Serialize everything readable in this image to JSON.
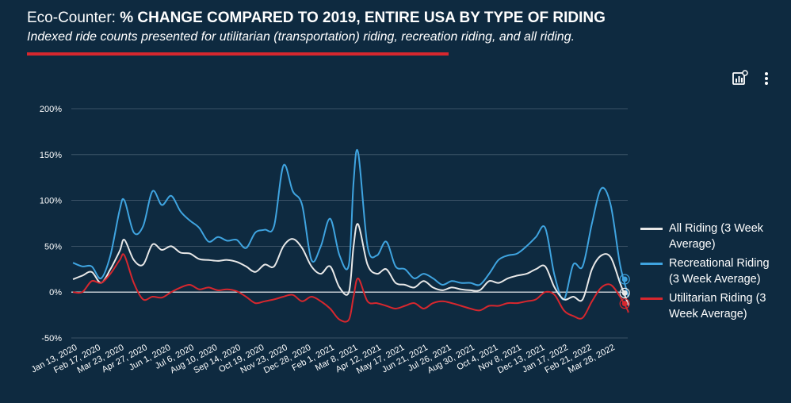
{
  "header": {
    "title_prefix": "Eco-Counter: ",
    "title_bold": "% CHANGE COMPARED TO 2019, ENTIRE USA BY TYPE OF RIDING",
    "subtitle": "Indexed ride counts presented for utilitarian (transportation) riding, recreation riding, and all riding."
  },
  "toolbar": {
    "insights_icon": "chart-insights-icon",
    "menu_icon": "more-vertical-icon"
  },
  "colors": {
    "background": "#0e2a40",
    "all": "#e8e8e8",
    "recreational": "#3fa4e0",
    "utilitarian": "#d7272e",
    "accent": "#d7272e"
  },
  "chart_data": {
    "type": "line",
    "title": "% CHANGE COMPARED TO 2019, ENTIRE USA BY TYPE OF RIDING",
    "ylim": [
      -50,
      200
    ],
    "yticks": [
      -50,
      0,
      50,
      100,
      150,
      200
    ],
    "ytick_labels": [
      "-50%",
      "0%",
      "50%",
      "100%",
      "150%",
      "200%"
    ],
    "x_tick_labels": [
      "Jan 13, 2020",
      "Feb 17, 2020",
      "Mar 23, 2020",
      "Apr 27, 2020",
      "Jun 1, 2020",
      "Jul 6, 2020",
      "Aug 10, 2020",
      "Sep 14, 2020",
      "Oct 19, 2020",
      "Nov 23, 2020",
      "Dec 28, 2020",
      "Feb 1, 2021",
      "Mar 8, 2021",
      "Apr 12, 2021",
      "May 17, 2021",
      "Jun 21, 2021",
      "Jul 26, 2021",
      "Aug 30, 2021",
      "Oct 4, 2021",
      "Nov 8, 2021",
      "Dec 13, 2021",
      "Jan 17, 2022",
      "Feb 21, 2022",
      "Mar 28, 2022"
    ],
    "x_start": "2020-01-13",
    "x_end": "2022-04-25",
    "grid": true,
    "legend_position": "right",
    "series": [
      {
        "name": "All Riding (3 Week Average)",
        "color": "#e8e8e8",
        "points": [
          [
            "2020-01-06",
            14
          ],
          [
            "2020-01-20",
            18
          ],
          [
            "2020-02-03",
            22
          ],
          [
            "2020-02-17",
            10
          ],
          [
            "2020-03-02",
            25
          ],
          [
            "2020-03-16",
            45
          ],
          [
            "2020-03-23",
            57
          ],
          [
            "2020-04-06",
            35
          ],
          [
            "2020-04-20",
            30
          ],
          [
            "2020-05-04",
            52
          ],
          [
            "2020-05-18",
            46
          ],
          [
            "2020-06-01",
            50
          ],
          [
            "2020-06-15",
            43
          ],
          [
            "2020-06-29",
            42
          ],
          [
            "2020-07-13",
            36
          ],
          [
            "2020-07-27",
            35
          ],
          [
            "2020-08-10",
            34
          ],
          [
            "2020-08-24",
            35
          ],
          [
            "2020-09-07",
            33
          ],
          [
            "2020-09-21",
            28
          ],
          [
            "2020-10-05",
            22
          ],
          [
            "2020-10-19",
            30
          ],
          [
            "2020-11-02",
            28
          ],
          [
            "2020-11-16",
            50
          ],
          [
            "2020-11-30",
            58
          ],
          [
            "2020-12-14",
            48
          ],
          [
            "2020-12-28",
            28
          ],
          [
            "2021-01-11",
            20
          ],
          [
            "2021-01-25",
            28
          ],
          [
            "2021-02-08",
            5
          ],
          [
            "2021-02-22",
            0
          ],
          [
            "2021-03-01",
            50
          ],
          [
            "2021-03-08",
            74
          ],
          [
            "2021-03-22",
            30
          ],
          [
            "2021-04-05",
            20
          ],
          [
            "2021-04-19",
            25
          ],
          [
            "2021-05-03",
            10
          ],
          [
            "2021-05-17",
            8
          ],
          [
            "2021-05-31",
            5
          ],
          [
            "2021-06-14",
            12
          ],
          [
            "2021-06-28",
            5
          ],
          [
            "2021-07-12",
            2
          ],
          [
            "2021-07-26",
            5
          ],
          [
            "2021-08-09",
            3
          ],
          [
            "2021-08-23",
            2
          ],
          [
            "2021-09-06",
            2
          ],
          [
            "2021-09-20",
            12
          ],
          [
            "2021-10-04",
            10
          ],
          [
            "2021-10-18",
            15
          ],
          [
            "2021-11-01",
            18
          ],
          [
            "2021-11-15",
            20
          ],
          [
            "2021-11-29",
            25
          ],
          [
            "2021-12-13",
            28
          ],
          [
            "2021-12-27",
            5
          ],
          [
            "2022-01-10",
            -8
          ],
          [
            "2022-01-24",
            -5
          ],
          [
            "2022-02-07",
            -8
          ],
          [
            "2022-02-21",
            25
          ],
          [
            "2022-03-07",
            40
          ],
          [
            "2022-03-21",
            38
          ],
          [
            "2022-04-04",
            10
          ],
          [
            "2022-04-18",
            -12
          ],
          [
            "2022-04-25",
            -13
          ]
        ]
      },
      {
        "name": "Recreational Riding (3 Week Average)",
        "color": "#3fa4e0",
        "points": [
          [
            "2020-01-06",
            32
          ],
          [
            "2020-01-20",
            28
          ],
          [
            "2020-02-03",
            28
          ],
          [
            "2020-02-17",
            15
          ],
          [
            "2020-03-02",
            40
          ],
          [
            "2020-03-16",
            90
          ],
          [
            "2020-03-23",
            100
          ],
          [
            "2020-04-06",
            65
          ],
          [
            "2020-04-20",
            72
          ],
          [
            "2020-05-04",
            110
          ],
          [
            "2020-05-18",
            95
          ],
          [
            "2020-06-01",
            105
          ],
          [
            "2020-06-15",
            88
          ],
          [
            "2020-06-29",
            78
          ],
          [
            "2020-07-13",
            70
          ],
          [
            "2020-07-27",
            55
          ],
          [
            "2020-08-10",
            60
          ],
          [
            "2020-08-24",
            56
          ],
          [
            "2020-09-07",
            57
          ],
          [
            "2020-09-21",
            48
          ],
          [
            "2020-10-05",
            65
          ],
          [
            "2020-10-19",
            68
          ],
          [
            "2020-11-02",
            72
          ],
          [
            "2020-11-16",
            138
          ],
          [
            "2020-11-30",
            110
          ],
          [
            "2020-12-14",
            95
          ],
          [
            "2020-12-28",
            35
          ],
          [
            "2021-01-11",
            50
          ],
          [
            "2021-01-25",
            80
          ],
          [
            "2021-02-08",
            40
          ],
          [
            "2021-02-22",
            30
          ],
          [
            "2021-03-01",
            120
          ],
          [
            "2021-03-08",
            152
          ],
          [
            "2021-03-22",
            50
          ],
          [
            "2021-04-05",
            40
          ],
          [
            "2021-04-19",
            55
          ],
          [
            "2021-05-03",
            28
          ],
          [
            "2021-05-17",
            25
          ],
          [
            "2021-05-31",
            15
          ],
          [
            "2021-06-14",
            20
          ],
          [
            "2021-06-28",
            15
          ],
          [
            "2021-07-12",
            8
          ],
          [
            "2021-07-26",
            12
          ],
          [
            "2021-08-09",
            10
          ],
          [
            "2021-08-23",
            10
          ],
          [
            "2021-09-06",
            8
          ],
          [
            "2021-09-20",
            20
          ],
          [
            "2021-10-04",
            35
          ],
          [
            "2021-10-18",
            40
          ],
          [
            "2021-11-01",
            42
          ],
          [
            "2021-11-15",
            50
          ],
          [
            "2021-11-29",
            60
          ],
          [
            "2021-12-13",
            70
          ],
          [
            "2021-12-27",
            18
          ],
          [
            "2022-01-10",
            -8
          ],
          [
            "2022-01-24",
            30
          ],
          [
            "2022-02-07",
            28
          ],
          [
            "2022-02-21",
            75
          ],
          [
            "2022-03-07",
            113
          ],
          [
            "2022-03-21",
            95
          ],
          [
            "2022-04-04",
            30
          ],
          [
            "2022-04-18",
            -2
          ],
          [
            "2022-04-25",
            -3
          ]
        ]
      },
      {
        "name": "Utilitarian Riding (3 Week Average)",
        "color": "#d7272e",
        "points": [
          [
            "2020-01-06",
            0
          ],
          [
            "2020-01-20",
            0
          ],
          [
            "2020-02-03",
            12
          ],
          [
            "2020-02-17",
            10
          ],
          [
            "2020-03-02",
            20
          ],
          [
            "2020-03-16",
            35
          ],
          [
            "2020-03-23",
            40
          ],
          [
            "2020-04-06",
            10
          ],
          [
            "2020-04-20",
            -8
          ],
          [
            "2020-05-04",
            -5
          ],
          [
            "2020-05-18",
            -6
          ],
          [
            "2020-06-01",
            0
          ],
          [
            "2020-06-15",
            5
          ],
          [
            "2020-06-29",
            8
          ],
          [
            "2020-07-13",
            3
          ],
          [
            "2020-07-27",
            5
          ],
          [
            "2020-08-10",
            2
          ],
          [
            "2020-08-24",
            3
          ],
          [
            "2020-09-07",
            1
          ],
          [
            "2020-09-21",
            -5
          ],
          [
            "2020-10-05",
            -12
          ],
          [
            "2020-10-19",
            -10
          ],
          [
            "2020-11-02",
            -8
          ],
          [
            "2020-11-16",
            -5
          ],
          [
            "2020-11-30",
            -3
          ],
          [
            "2020-12-14",
            -10
          ],
          [
            "2020-12-28",
            -5
          ],
          [
            "2021-01-11",
            -10
          ],
          [
            "2021-01-25",
            -18
          ],
          [
            "2021-02-08",
            -30
          ],
          [
            "2021-02-22",
            -30
          ],
          [
            "2021-03-01",
            -5
          ],
          [
            "2021-03-08",
            15
          ],
          [
            "2021-03-22",
            -10
          ],
          [
            "2021-04-05",
            -12
          ],
          [
            "2021-04-19",
            -15
          ],
          [
            "2021-05-03",
            -18
          ],
          [
            "2021-05-17",
            -15
          ],
          [
            "2021-05-31",
            -12
          ],
          [
            "2021-06-14",
            -18
          ],
          [
            "2021-06-28",
            -12
          ],
          [
            "2021-07-12",
            -10
          ],
          [
            "2021-07-26",
            -12
          ],
          [
            "2021-08-09",
            -15
          ],
          [
            "2021-08-23",
            -18
          ],
          [
            "2021-09-06",
            -20
          ],
          [
            "2021-09-20",
            -15
          ],
          [
            "2021-10-04",
            -15
          ],
          [
            "2021-10-18",
            -12
          ],
          [
            "2021-11-01",
            -12
          ],
          [
            "2021-11-15",
            -10
          ],
          [
            "2021-11-29",
            -8
          ],
          [
            "2021-12-13",
            0
          ],
          [
            "2021-12-27",
            -3
          ],
          [
            "2022-01-10",
            -20
          ],
          [
            "2022-01-24",
            -26
          ],
          [
            "2022-02-07",
            -28
          ],
          [
            "2022-02-21",
            -10
          ],
          [
            "2022-03-07",
            5
          ],
          [
            "2022-03-21",
            8
          ],
          [
            "2022-04-04",
            -5
          ],
          [
            "2022-04-18",
            -20
          ],
          [
            "2022-04-25",
            -22
          ]
        ]
      }
    ],
    "highlight_date": "2022-04-11"
  }
}
